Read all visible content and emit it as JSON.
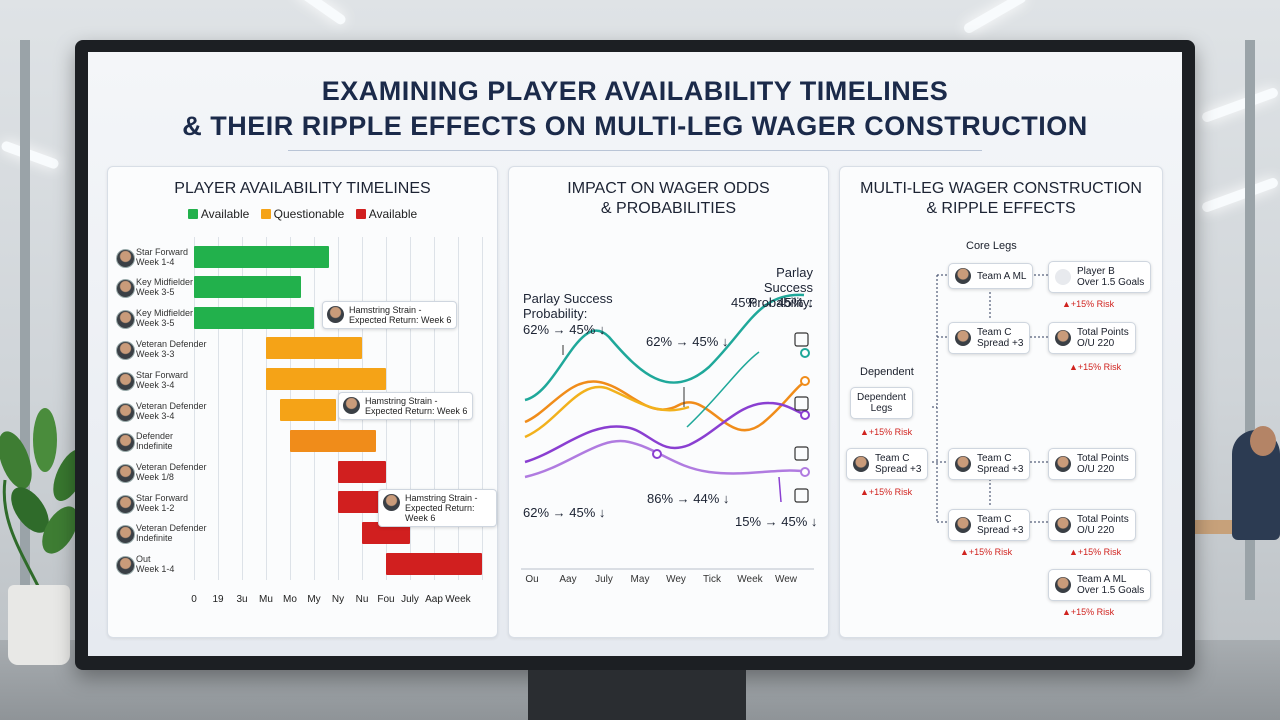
{
  "title": {
    "line1": "EXAMINING PLAYER AVAILABILITY TIMELINES",
    "line2": "& THEIR RIPPLE EFFECTS ON MULTI-LEG WAGER CONSTRUCTION"
  },
  "timeline_panel": {
    "title": "PLAYER AVAILABILITY TIMELINES",
    "legend": [
      {
        "label": "Available",
        "color": "#22b14c"
      },
      {
        "label": "Questionable",
        "color": "#f5a317"
      },
      {
        "label": "Available",
        "color": "#d11f1f"
      }
    ],
    "rows": [
      {
        "label": "Star Forward\nWeek 1-4"
      },
      {
        "label": "Key Midfielder\nWeek 3-5"
      },
      {
        "label": "Key Midfielder\nWeek 3-5"
      },
      {
        "label": "Veteran Defender\nWeek 3-3"
      },
      {
        "label": "Star Forward\nWeek 3-4"
      },
      {
        "label": "Veteran Defender\nWeek 3-4"
      },
      {
        "label": "Defender\nIndefinite"
      },
      {
        "label": "Veteran Defender\nWeek 1/8"
      },
      {
        "label": "Star Forward\nWeek 1-2"
      },
      {
        "label": "Veteran Defender\nIndefinite"
      },
      {
        "label": "Out\nWeek 1-4"
      }
    ],
    "callouts": [
      {
        "text": "Hamstring Strain -\nExpected Return: Week 6"
      },
      {
        "text": "Hamstring Strain -\nExpected Return: Week 6"
      },
      {
        "text": "Hamstring Strain -\nExpected Return: Week 6"
      }
    ],
    "x_ticks": [
      "0",
      "19",
      "3u",
      "Mu",
      "Mo",
      "My",
      "Ny",
      "Nu",
      "Fou",
      "July",
      "Aap",
      "Week"
    ]
  },
  "odds_panel": {
    "title_line1": "IMPACT ON WAGER ODDS",
    "title_line2": "& PROBABILITIES",
    "left_label": "Parlay Success\nProbability:",
    "left_value": "62% → 45% ↓",
    "right_label": "Parlay Success\nProbability:",
    "right_value": "45% → 45% ↓",
    "mid_value": "62% → 45% ↓",
    "bottom_left": "62% → 45% ↓",
    "bottom_mid": "86% → 44% ↓",
    "bottom_right": "15% → 45% ↓",
    "x_ticks": [
      "Ou",
      "Aay",
      "July",
      "May",
      "Wey",
      "Tick",
      "Week",
      "Wew"
    ],
    "series_colors": [
      "#1fa89a",
      "#f08c1a",
      "#f2b11c",
      "#8a3fd1",
      "#b07be0"
    ]
  },
  "wager_panel": {
    "title_line1": "MULTI-LEG WAGER CONSTRUCTION",
    "title_line2": "& RIPPLE EFFECTS",
    "core_legs_label": "Core Legs",
    "dependent_label": "Dependent",
    "dependent_box": "Dependent\nLegs",
    "risk_text": "▲+15% Risk",
    "nodes": {
      "team_a_ml": "Team A ML",
      "player_b": "Player B\nOver 1.5 Goals",
      "team_c_1": "Team C\nSpread +3",
      "total_1": "Total Points\nO/U 220",
      "team_c_left": "Team C\nSpread +3",
      "team_c_2": "Team C\nSpread +3",
      "total_2": "Total Points\nO/U 220",
      "team_c_3": "Team C\nSpread +3",
      "total_3": "Total Points\nO/U 220",
      "team_a_ml_2": "Team A ML\nOver 1.5 Goals"
    },
    "risk_labels": {
      "player_b": "▲+15% Risk",
      "total_1": "▲+15% Risk",
      "dependent": "▲+15% Risk",
      "team_c_left": "▲+15% Risk",
      "team_c_3": "▲+15% Risk",
      "total_3": "▲+15% Risk",
      "team_a_ml_2": "▲+15% Risk"
    }
  }
}
